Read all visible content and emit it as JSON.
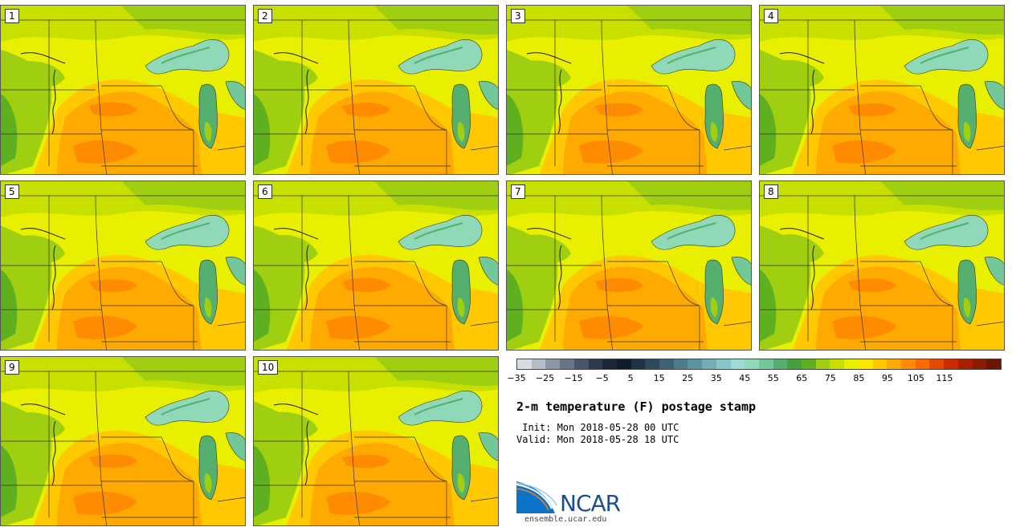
{
  "panels": [
    {
      "label": "1"
    },
    {
      "label": "2"
    },
    {
      "label": "3"
    },
    {
      "label": "4"
    },
    {
      "label": "5"
    },
    {
      "label": "6"
    },
    {
      "label": "7"
    },
    {
      "label": "8"
    },
    {
      "label": "9"
    },
    {
      "label": "10"
    }
  ],
  "colorbar": {
    "colors": [
      "#d8dde4",
      "#b3bcc7",
      "#8c97a6",
      "#6a7587",
      "#4a5568",
      "#2e3a4c",
      "#1b2536",
      "#0f1a2a",
      "#1f3344",
      "#2d4a5a",
      "#3d6272",
      "#4d7b8a",
      "#5e94a0",
      "#72aeb4",
      "#86c6c6",
      "#9ddcd4",
      "#8fd8b8",
      "#72c898",
      "#55b070",
      "#47a040",
      "#5fb020",
      "#9fcf10",
      "#c8e000",
      "#e8f000",
      "#ffe400",
      "#ffc800",
      "#ffaa00",
      "#ff8c00",
      "#ff6a00",
      "#e84800",
      "#cc2a00",
      "#a81e00",
      "#8a1a00",
      "#6a1600"
    ],
    "ticks": [
      "−35",
      "−25",
      "−15",
      "−5",
      "5",
      "15",
      "25",
      "35",
      "45",
      "55",
      "65",
      "75",
      "85",
      "95",
      "105",
      "115"
    ]
  },
  "title": "2-m temperature (F) postage stamp",
  "init": " Init: Mon 2018-05-28 00 UTC",
  "valid": "Valid: Mon 2018-05-28 18 UTC",
  "logo": {
    "text": "NCAR",
    "url": "ensemble.ucar.edu"
  }
}
